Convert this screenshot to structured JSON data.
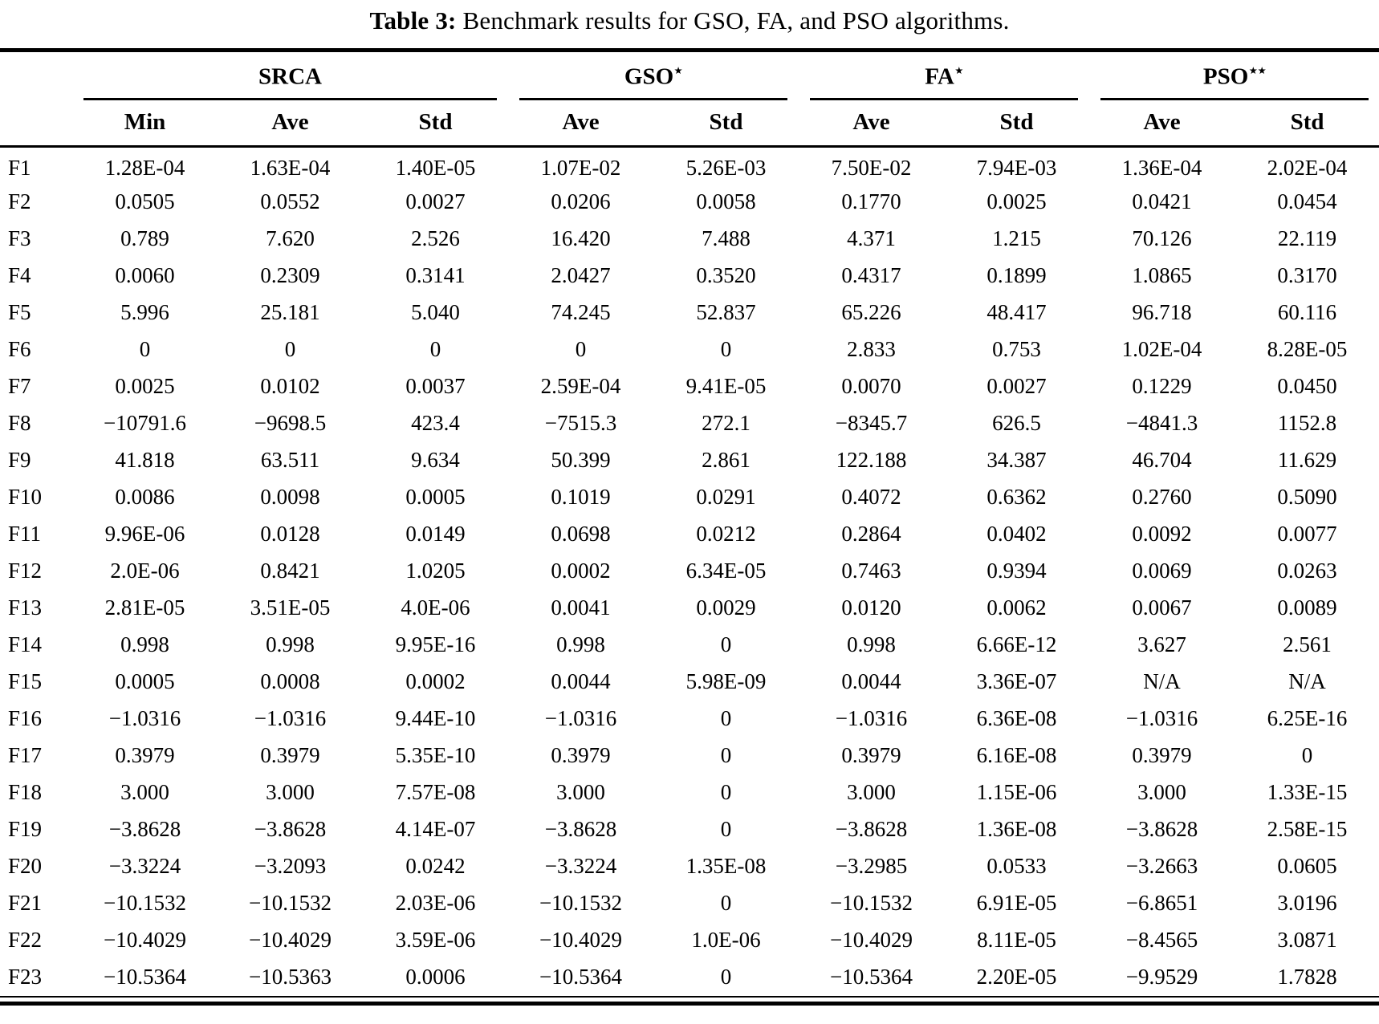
{
  "caption": {
    "label": "Table 3:",
    "text": " Benchmark results for GSO, FA, and PSO algorithms."
  },
  "table": {
    "groups": [
      {
        "name": "SRCA",
        "sup": "",
        "cols": 3
      },
      {
        "name": "GSO",
        "sup": "⋆",
        "cols": 2
      },
      {
        "name": "FA",
        "sup": "⋆",
        "cols": 2
      },
      {
        "name": "PSO",
        "sup": "⋆⋆",
        "cols": 2
      }
    ],
    "subheaders": [
      "Min",
      "Ave",
      "Std",
      "Ave",
      "Std",
      "Ave",
      "Std",
      "Ave",
      "Std"
    ],
    "rows": [
      {
        "label": "F1",
        "values": [
          "1.28E-04",
          "1.63E-04",
          "1.40E-05",
          "1.07E-02",
          "5.26E-03",
          "7.50E-02",
          "7.94E-03",
          "1.36E-04",
          "2.02E-04"
        ]
      },
      {
        "label": "F2",
        "values": [
          "0.0505",
          "0.0552",
          "0.0027",
          "0.0206",
          "0.0058",
          "0.1770",
          "0.0025",
          "0.0421",
          "0.0454"
        ]
      },
      {
        "label": "F3",
        "values": [
          "0.789",
          "7.620",
          "2.526",
          "16.420",
          "7.488",
          "4.371",
          "1.215",
          "70.126",
          "22.119"
        ]
      },
      {
        "label": "F4",
        "values": [
          "0.0060",
          "0.2309",
          "0.3141",
          "2.0427",
          "0.3520",
          "0.4317",
          "0.1899",
          "1.0865",
          "0.3170"
        ]
      },
      {
        "label": "F5",
        "values": [
          "5.996",
          "25.181",
          "5.040",
          "74.245",
          "52.837",
          "65.226",
          "48.417",
          "96.718",
          "60.116"
        ]
      },
      {
        "label": "F6",
        "values": [
          "0",
          "0",
          "0",
          "0",
          "0",
          "2.833",
          "0.753",
          "1.02E-04",
          "8.28E-05"
        ]
      },
      {
        "label": "F7",
        "values": [
          "0.0025",
          "0.0102",
          "0.0037",
          "2.59E-04",
          "9.41E-05",
          "0.0070",
          "0.0027",
          "0.1229",
          "0.0450"
        ]
      },
      {
        "label": "F8",
        "values": [
          "−10791.6",
          "−9698.5",
          "423.4",
          "−7515.3",
          "272.1",
          "−8345.7",
          "626.5",
          "−4841.3",
          "1152.8"
        ]
      },
      {
        "label": "F9",
        "values": [
          "41.818",
          "63.511",
          "9.634",
          "50.399",
          "2.861",
          "122.188",
          "34.387",
          "46.704",
          "11.629"
        ]
      },
      {
        "label": "F10",
        "values": [
          "0.0086",
          "0.0098",
          "0.0005",
          "0.1019",
          "0.0291",
          "0.4072",
          "0.6362",
          "0.2760",
          "0.5090"
        ]
      },
      {
        "label": "F11",
        "values": [
          "9.96E-06",
          "0.0128",
          "0.0149",
          "0.0698",
          "0.0212",
          "0.2864",
          "0.0402",
          "0.0092",
          "0.0077"
        ]
      },
      {
        "label": "F12",
        "values": [
          "2.0E-06",
          "0.8421",
          "1.0205",
          "0.0002",
          "6.34E-05",
          "0.7463",
          "0.9394",
          "0.0069",
          "0.0263"
        ]
      },
      {
        "label": "F13",
        "values": [
          "2.81E-05",
          "3.51E-05",
          "4.0E-06",
          "0.0041",
          "0.0029",
          "0.0120",
          "0.0062",
          "0.0067",
          "0.0089"
        ]
      },
      {
        "label": "F14",
        "values": [
          "0.998",
          "0.998",
          "9.95E-16",
          "0.998",
          "0",
          "0.998",
          "6.66E-12",
          "3.627",
          "2.561"
        ]
      },
      {
        "label": "F15",
        "values": [
          "0.0005",
          "0.0008",
          "0.0002",
          "0.0044",
          "5.98E-09",
          "0.0044",
          "3.36E-07",
          "N/A",
          "N/A"
        ]
      },
      {
        "label": "F16",
        "values": [
          "−1.0316",
          "−1.0316",
          "9.44E-10",
          "−1.0316",
          "0",
          "−1.0316",
          "6.36E-08",
          "−1.0316",
          "6.25E-16"
        ]
      },
      {
        "label": "F17",
        "values": [
          "0.3979",
          "0.3979",
          "5.35E-10",
          "0.3979",
          "0",
          "0.3979",
          "6.16E-08",
          "0.3979",
          "0"
        ]
      },
      {
        "label": "F18",
        "values": [
          "3.000",
          "3.000",
          "7.57E-08",
          "3.000",
          "0",
          "3.000",
          "1.15E-06",
          "3.000",
          "1.33E-15"
        ]
      },
      {
        "label": "F19",
        "values": [
          "−3.8628",
          "−3.8628",
          "4.14E-07",
          "−3.8628",
          "0",
          "−3.8628",
          "1.36E-08",
          "−3.8628",
          "2.58E-15"
        ]
      },
      {
        "label": "F20",
        "values": [
          "−3.3224",
          "−3.2093",
          "0.0242",
          "−3.3224",
          "1.35E-08",
          "−3.2985",
          "0.0533",
          "−3.2663",
          "0.0605"
        ]
      },
      {
        "label": "F21",
        "values": [
          "−10.1532",
          "−10.1532",
          "2.03E-06",
          "−10.1532",
          "0",
          "−10.1532",
          "6.91E-05",
          "−6.8651",
          "3.0196"
        ]
      },
      {
        "label": "F22",
        "values": [
          "−10.4029",
          "−10.4029",
          "3.59E-06",
          "−10.4029",
          "1.0E-06",
          "−10.4029",
          "8.11E-05",
          "−8.4565",
          "3.0871"
        ]
      },
      {
        "label": "F23",
        "values": [
          "−10.5364",
          "−10.5363",
          "0.0006",
          "−10.5364",
          "0",
          "−10.5364",
          "2.20E-05",
          "−9.9529",
          "1.7828"
        ]
      }
    ]
  }
}
